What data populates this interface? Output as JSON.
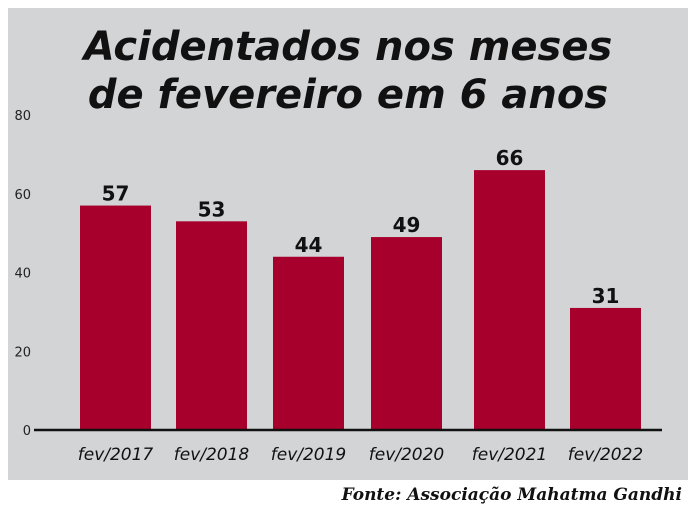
{
  "chart_data": {
    "type": "bar",
    "title": [
      "Acidentados nos meses",
      "de fevereiro em 6 anos"
    ],
    "categories": [
      "fev/2017",
      "fev/2018",
      "fev/2019",
      "fev/2020",
      "fev/2021",
      "fev/2022"
    ],
    "values": [
      57,
      53,
      44,
      49,
      66,
      31
    ],
    "data_labels": [
      "57",
      "53",
      "44",
      "49",
      "66",
      "31"
    ],
    "yticks": [
      "0",
      "20",
      "40",
      "60",
      "80"
    ],
    "ylim": [
      0,
      80
    ],
    "grid": false,
    "source": "Fonte: Associação Mahatma Gandhi",
    "colors": {
      "bar": "#a8002c",
      "background": "#d3d4d6"
    }
  }
}
